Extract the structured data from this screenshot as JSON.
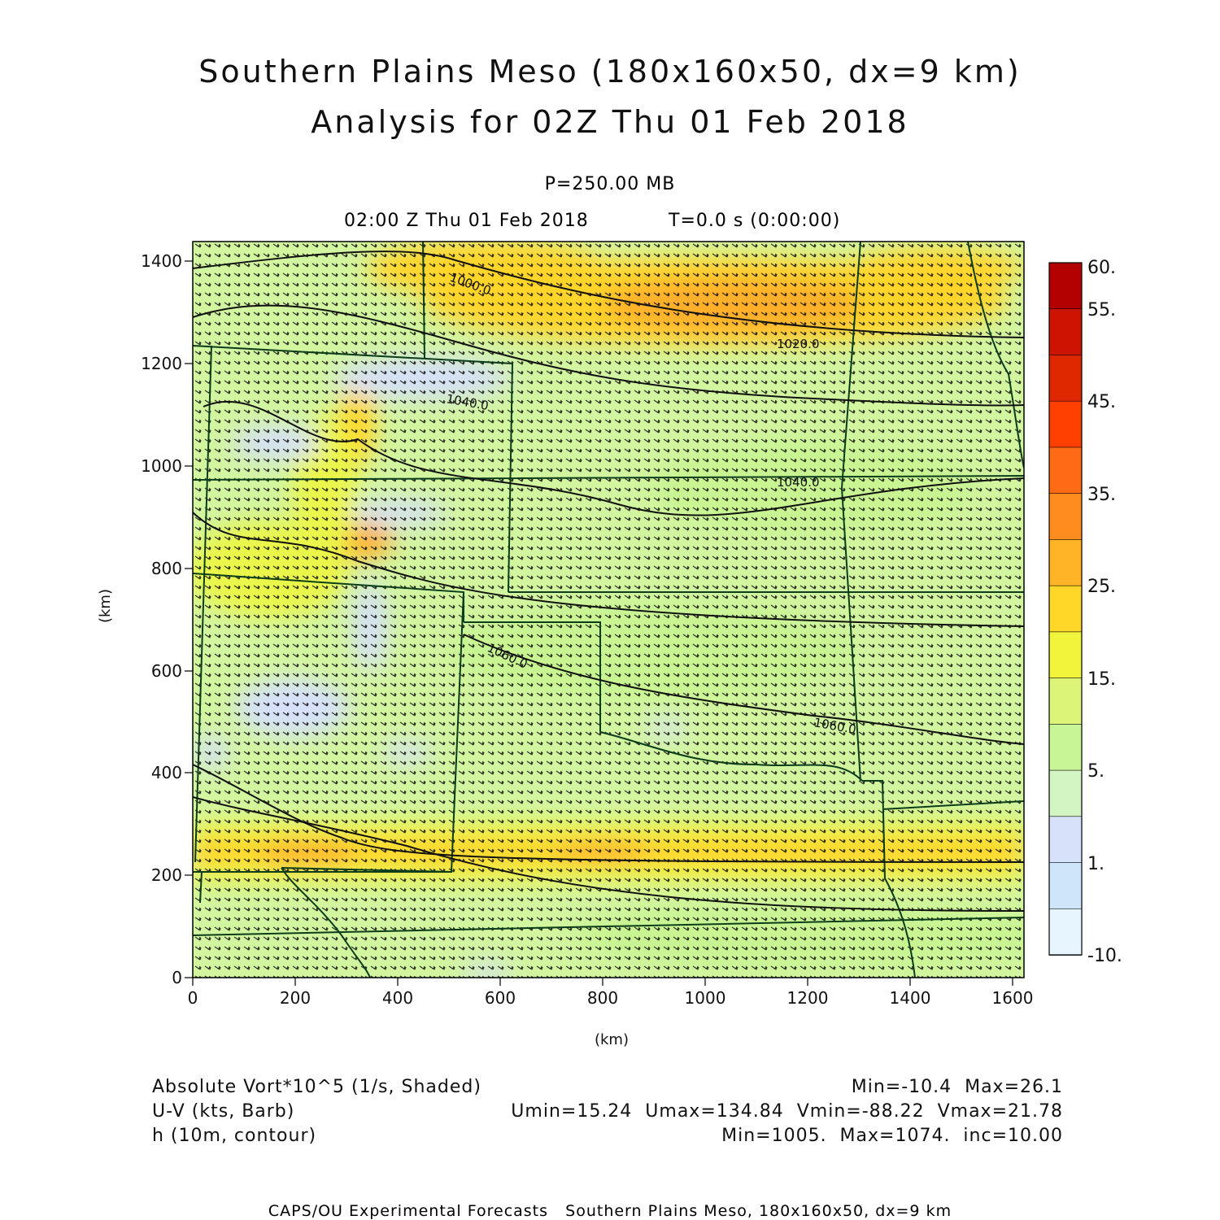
{
  "header": {
    "title_line1": "Southern Plains Meso (180x160x50, dx=9 km)",
    "title_line2": "Analysis for 02Z Thu 01 Feb 2018",
    "level": "P=250.00 MB",
    "valid_time": "02:00 Z Thu 01 Feb 2018",
    "sim_time": "T=0.0 s (0:00:00)"
  },
  "axes": {
    "x_label": "(km)",
    "y_label": "(km)",
    "x_ticks": [
      "0",
      "200",
      "400",
      "600",
      "800",
      "1000",
      "1200",
      "1400",
      "1600"
    ],
    "y_ticks": [
      "0",
      "200",
      "400",
      "600",
      "800",
      "1000",
      "1200",
      "1400"
    ],
    "x_range_km": [
      0,
      1620
    ],
    "y_range_km": [
      0,
      1440
    ]
  },
  "colorbar": {
    "labels": [
      "60.",
      "55.",
      "45.",
      "35.",
      "25.",
      "15.",
      "5.",
      "1.",
      "-10."
    ],
    "colors": [
      "#b30000",
      "#cc1400",
      "#e02800",
      "#ff4000",
      "#ff6a14",
      "#ff8c1e",
      "#ffb428",
      "#ffd728",
      "#f0f53c",
      "#dcf578",
      "#c8f596",
      "#d2f5c3",
      "#d7e1fa",
      "#cde6fa",
      "#e6f5ff"
    ]
  },
  "contours": {
    "labels": [
      "1000.0",
      "1020.0",
      "1040.0",
      "1040.0",
      "1060.0",
      "1060.0"
    ]
  },
  "map": {
    "shading_levels": {
      "background": "#d2f5a0",
      "light_green": "#c8f592",
      "yellow": "#eaf64a",
      "gold": "#ffd52a",
      "orange": "#ffae2a",
      "blue": "#d6e0fa"
    },
    "barb_color": "#111111",
    "state_line_color": "#0b3d1a"
  },
  "legend": {
    "field1_label": "Absolute Vort*10^5 (1/s, Shaded)",
    "field1_stats": "Min=-10.4  Max=26.1",
    "field2_label": "U-V (kts, Barb)",
    "field2_stats": "Umin=15.24  Umax=134.84  Vmin=-88.22  Vmax=21.78",
    "field3_label": "h (10m, contour)",
    "field3_stats": "Min=1005.  Max=1074.  inc=10.00"
  },
  "credit": "CAPS/OU Experimental Forecasts   Southern Plains Meso, 180x160x50, dx=9 km"
}
